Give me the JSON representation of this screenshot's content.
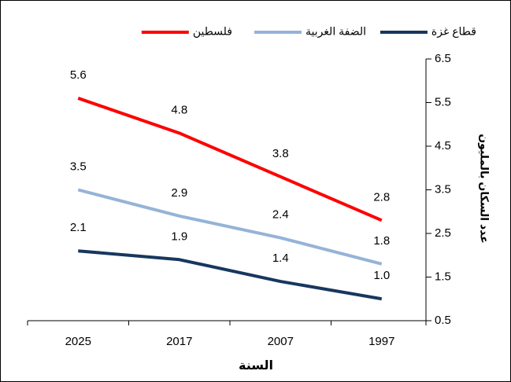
{
  "chart_data": {
    "type": "line",
    "categories": [
      "2025",
      "2017",
      "2007",
      "1997"
    ],
    "series": [
      {
        "name": "قطاع غزة",
        "color": "#17375e",
        "values": [
          2.1,
          1.9,
          1.4,
          1.0
        ],
        "value_labels": [
          "2.1",
          "1.9",
          "1.4",
          "1.0"
        ]
      },
      {
        "name": "الضفة الغربية",
        "color": "#95b3d7",
        "values": [
          3.5,
          2.9,
          2.4,
          1.8
        ]
      },
      {
        "name": "فلسطين",
        "color": "#ff0000",
        "values": [
          5.6,
          4.8,
          3.8,
          2.8
        ]
      }
    ],
    "ylim": [
      0.5,
      6.5
    ],
    "yticks": [
      0.5,
      1.5,
      2.5,
      3.5,
      4.5,
      5.5,
      6.5
    ],
    "y_label": "عدد السكان بالمليون",
    "x_label": "السنة"
  }
}
